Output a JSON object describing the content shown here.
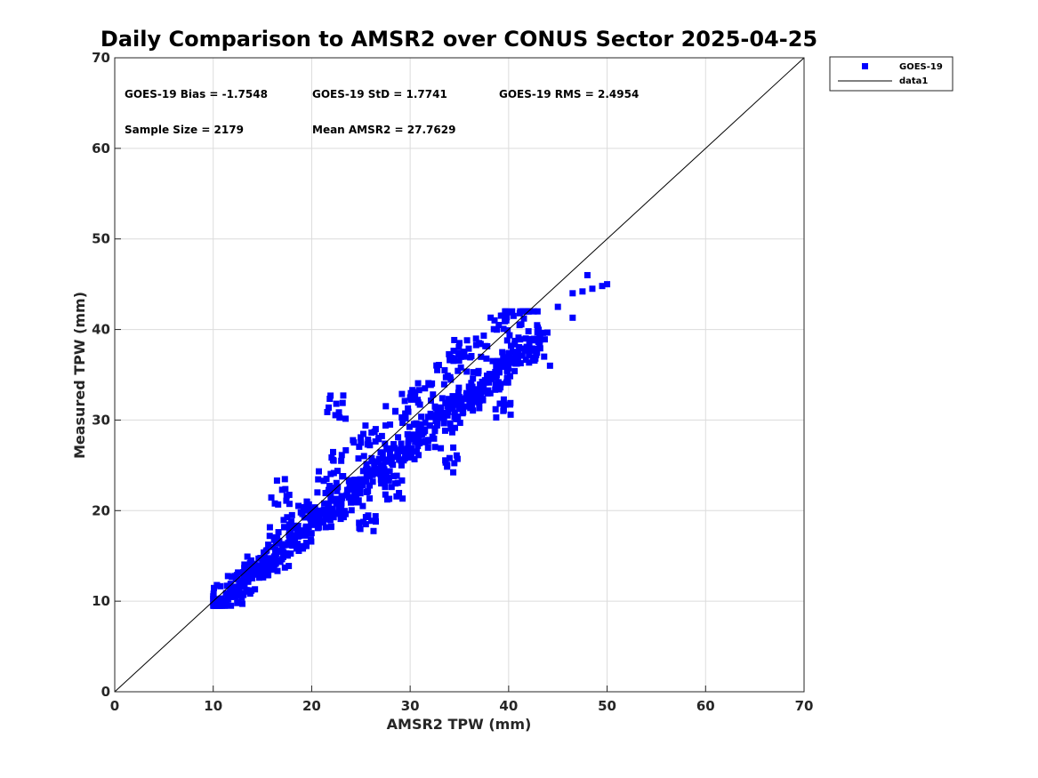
{
  "chart_data": {
    "type": "scatter",
    "title": "Daily Comparison to AMSR2 over CONUS Sector 2025-04-25",
    "xlabel": "AMSR2 TPW (mm)",
    "ylabel": "Measured TPW (mm)",
    "xlim": [
      0,
      70
    ],
    "ylim": [
      0,
      70
    ],
    "xticks": [
      "0",
      "10",
      "20",
      "30",
      "40",
      "50",
      "60",
      "70"
    ],
    "yticks": [
      "0",
      "10",
      "20",
      "30",
      "40",
      "50",
      "60",
      "70"
    ],
    "grid": true,
    "legend_position": "outside-top-right",
    "colors": {
      "scatter": "#0000ff",
      "reference_line": "#000000"
    },
    "annotations": [
      "GOES-19 Bias = -1.7548",
      "GOES-19 StD = 1.7741",
      "GOES-19 RMS = 2.4954",
      "Sample Size = 2179",
      "Mean AMSR2 = 27.7629"
    ],
    "series": [
      {
        "name": "GOES-19",
        "marker": "square",
        "x": [
          10.2,
          10.8,
          11.3,
          11.9,
          12.4,
          13.0,
          13.6,
          14.1,
          14.7,
          15.2,
          15.8,
          16.4,
          16.9,
          17.5,
          18.0,
          18.6,
          19.2,
          19.7,
          20.3,
          20.8,
          21.4,
          22.0,
          22.5,
          23.1,
          23.6,
          24.2,
          24.8,
          25.3,
          25.9,
          26.4,
          27.0,
          27.6,
          28.1,
          28.7,
          29.2,
          29.8,
          30.4,
          30.9,
          31.5,
          32.0,
          32.6,
          33.2,
          33.7,
          34.3,
          34.8,
          35.4,
          36.0,
          36.5,
          37.1,
          37.6,
          38.2,
          38.8,
          39.3,
          39.9,
          40.4,
          41.0,
          41.6,
          42.1,
          42.7,
          43.2,
          45.0,
          46.5,
          47.5,
          48.5,
          49.5,
          50.0,
          12.0,
          14.0,
          16.5,
          18.0,
          19.5,
          21.5,
          23.0,
          25.0,
          26.5,
          28.5,
          30.0,
          31.5,
          33.5,
          35.5,
          37.0,
          39.0,
          40.5,
          42.0,
          17.0,
          22.5,
          25.5,
          28.5,
          34.0,
          35.0,
          39.5,
          44.2,
          46.5,
          48.0
        ],
        "y": [
          9.7,
          10.3,
          10.8,
          11.2,
          11.6,
          12.2,
          12.7,
          13.2,
          13.6,
          14.2,
          14.6,
          15.2,
          15.6,
          16.2,
          16.8,
          17.2,
          17.6,
          18.2,
          18.8,
          19.2,
          19.8,
          20.2,
          20.8,
          21.4,
          21.8,
          22.3,
          22.8,
          23.4,
          23.8,
          24.4,
          24.8,
          25.4,
          25.8,
          26.4,
          26.8,
          27.4,
          27.9,
          28.4,
          28.8,
          29.4,
          29.9,
          30.4,
          30.8,
          31.4,
          31.9,
          32.4,
          32.8,
          33.4,
          33.9,
          34.4,
          34.8,
          35.4,
          35.9,
          36.4,
          36.8,
          37.4,
          37.9,
          38.4,
          38.8,
          39.4,
          42.5,
          44.0,
          44.2,
          44.5,
          44.8,
          45.0,
          11.5,
          14.0,
          17.0,
          19.5,
          21.0,
          23.5,
          25.5,
          27.5,
          29.0,
          31.0,
          32.5,
          33.5,
          35.5,
          37.0,
          38.5,
          40.5,
          41.5,
          42.0,
          22.3,
          31.8,
          18.5,
          23.0,
          25.8,
          38.5,
          31.2,
          36.0,
          41.3,
          46.0
        ]
      },
      {
        "name": "data1",
        "type": "line",
        "x": [
          0,
          70
        ],
        "y": [
          0,
          70
        ]
      }
    ]
  }
}
